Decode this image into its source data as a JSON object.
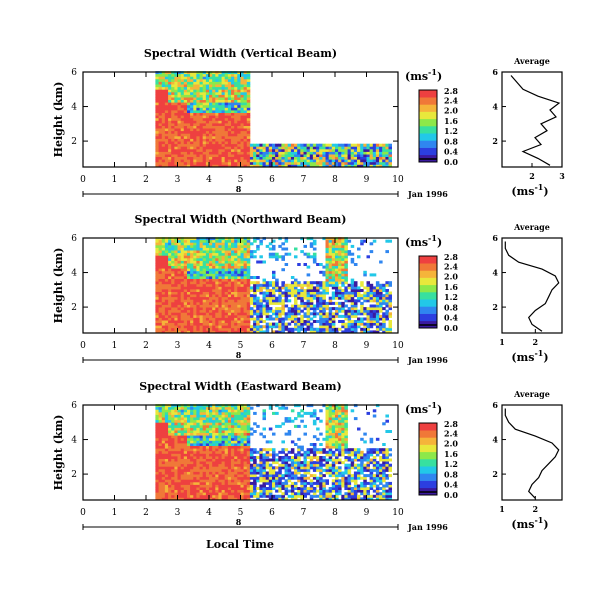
{
  "figure": {
    "xlabel": "Local Time",
    "date_label": "Jan 1996",
    "day_marker": "8",
    "ylabel": "Height (km)",
    "unit_label": "(ms",
    "unit_exp": "-1",
    "unit_close": ")",
    "avg_title": "Average",
    "colors": {
      "palette": [
        "#3a1aa0",
        "#2c3fe0",
        "#2f86f0",
        "#22c8e8",
        "#37e0a0",
        "#8de84a",
        "#e8e83c",
        "#f5b43a",
        "#f07838",
        "#ee4040"
      ],
      "axis": "#000000",
      "background": "#ffffff"
    }
  },
  "chart_data": [
    {
      "type": "heatmap",
      "title": "Spectral Width (Vertical Beam)",
      "xlabel": "",
      "ylabel": "Height (km)",
      "xlim": [
        0,
        10
      ],
      "ylim": [
        0.5,
        6
      ],
      "x_ticks": [
        "0",
        "1",
        "2",
        "3",
        "4",
        "5",
        "6",
        "7",
        "8",
        "9",
        "10"
      ],
      "y_ticks": [
        "2",
        "4",
        "6"
      ],
      "colorbar": {
        "ticks": [
          "0.0",
          "0.4",
          "0.8",
          "1.2",
          "1.6",
          "2.0",
          "2.4",
          "2.8"
        ],
        "range": [
          0.0,
          2.8
        ]
      },
      "data_window": [
        2.3,
        9.7
      ],
      "average_profile": {
        "xlim": [
          1,
          3
        ],
        "x_ticks": [
          "2",
          "3"
        ],
        "ylim": [
          0.5,
          6
        ],
        "height": [
          0.6,
          1.0,
          1.4,
          1.8,
          2.2,
          2.6,
          3.0,
          3.4,
          3.8,
          4.2,
          4.6,
          5.0,
          5.4,
          5.8
        ],
        "width": [
          2.6,
          2.2,
          1.7,
          2.3,
          2.1,
          2.5,
          2.3,
          2.8,
          2.6,
          2.9,
          2.2,
          1.7,
          1.5,
          1.3
        ]
      }
    },
    {
      "type": "heatmap",
      "title": "Spectral Width (Northward Beam)",
      "xlabel": "",
      "ylabel": "Height (km)",
      "xlim": [
        0,
        10
      ],
      "ylim": [
        0.5,
        6
      ],
      "x_ticks": [
        "0",
        "1",
        "2",
        "3",
        "4",
        "5",
        "6",
        "7",
        "8",
        "9",
        "10"
      ],
      "y_ticks": [
        "2",
        "4",
        "6"
      ],
      "colorbar": {
        "ticks": [
          "0.0",
          "0.4",
          "0.8",
          "1.2",
          "1.6",
          "2.0",
          "2.4",
          "2.8"
        ],
        "range": [
          0.0,
          2.8
        ]
      },
      "data_window": [
        2.3,
        9.7
      ],
      "average_profile": {
        "xlim": [
          1,
          2.8
        ],
        "x_ticks": [
          "1",
          "2"
        ],
        "ylim": [
          0.5,
          6
        ],
        "height": [
          0.6,
          1.0,
          1.4,
          1.8,
          2.2,
          2.6,
          3.0,
          3.4,
          3.8,
          4.2,
          4.6,
          5.0,
          5.4,
          5.8
        ],
        "width": [
          2.2,
          1.9,
          1.8,
          2.0,
          2.3,
          2.4,
          2.5,
          2.7,
          2.6,
          2.2,
          1.5,
          1.2,
          1.1,
          1.1
        ]
      }
    },
    {
      "type": "heatmap",
      "title": "Spectral Width (Eastward Beam)",
      "xlabel": "Local Time",
      "ylabel": "Height (km)",
      "xlim": [
        0,
        10
      ],
      "ylim": [
        0.5,
        6
      ],
      "x_ticks": [
        "0",
        "1",
        "2",
        "3",
        "4",
        "5",
        "6",
        "7",
        "8",
        "9",
        "10"
      ],
      "y_ticks": [
        "2",
        "4",
        "6"
      ],
      "colorbar": {
        "ticks": [
          "0.0",
          "0.4",
          "0.8",
          "1.2",
          "1.6",
          "2.0",
          "2.4",
          "2.8"
        ],
        "range": [
          0.0,
          2.8
        ]
      },
      "data_window": [
        2.3,
        9.7
      ],
      "average_profile": {
        "xlim": [
          1,
          2.8
        ],
        "x_ticks": [
          "1",
          "2"
        ],
        "ylim": [
          0.5,
          6
        ],
        "height": [
          0.6,
          1.0,
          1.4,
          1.8,
          2.2,
          2.6,
          3.0,
          3.4,
          3.8,
          4.2,
          4.6,
          5.0,
          5.4,
          5.8
        ],
        "width": [
          2.0,
          1.8,
          1.9,
          2.1,
          2.2,
          2.4,
          2.6,
          2.7,
          2.5,
          2.0,
          1.4,
          1.2,
          1.1,
          1.1
        ]
      }
    }
  ]
}
